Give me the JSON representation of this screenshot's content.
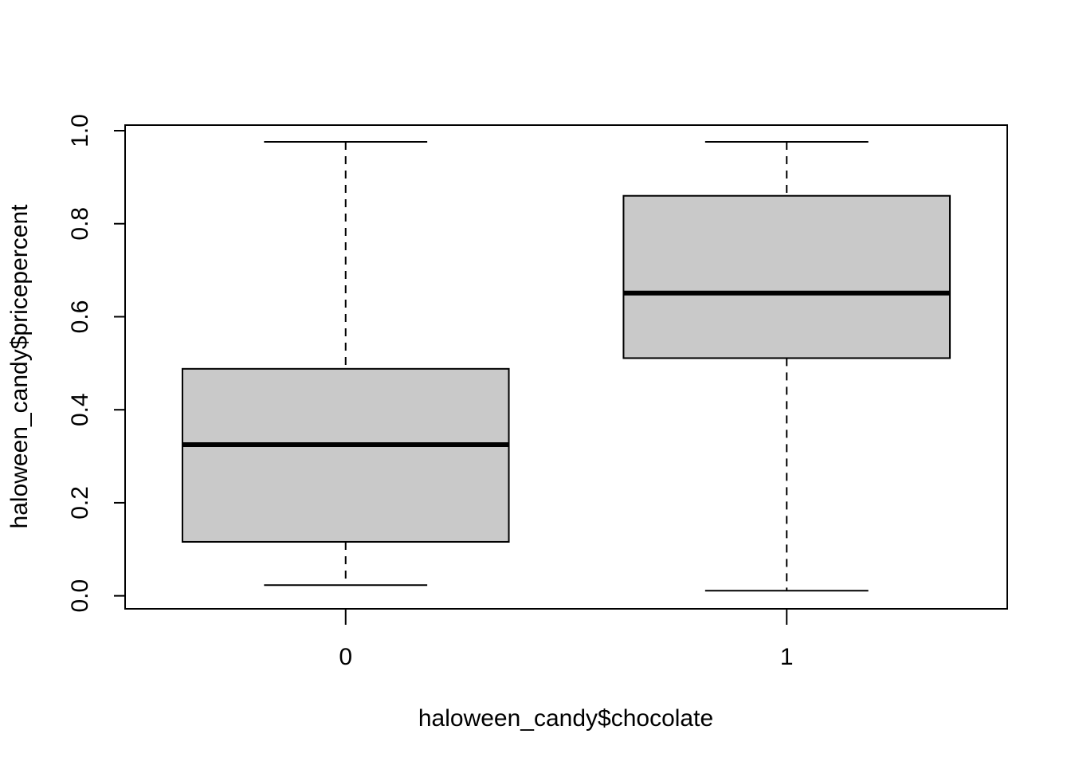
{
  "chart_data": {
    "type": "boxplot",
    "title": "",
    "xlabel": "haloween_candy$chocolate",
    "ylabel": "haloween_candy$pricepercent",
    "categories": [
      "0",
      "1"
    ],
    "yticks": [
      "0.0",
      "0.2",
      "0.4",
      "0.6",
      "0.8",
      "1.0"
    ],
    "ylim": [
      -0.028,
      1.012
    ],
    "grid": false,
    "legend": "none",
    "box_fill": "#c9c9c9",
    "stroke": "#000000",
    "boxes": [
      {
        "category": "0",
        "whisker_low": 0.023,
        "q1": 0.116,
        "median": 0.325,
        "q3": 0.488,
        "whisker_high": 0.976
      },
      {
        "category": "1",
        "whisker_low": 0.011,
        "q1": 0.511,
        "median": 0.651,
        "q3": 0.86,
        "whisker_high": 0.976
      }
    ]
  }
}
